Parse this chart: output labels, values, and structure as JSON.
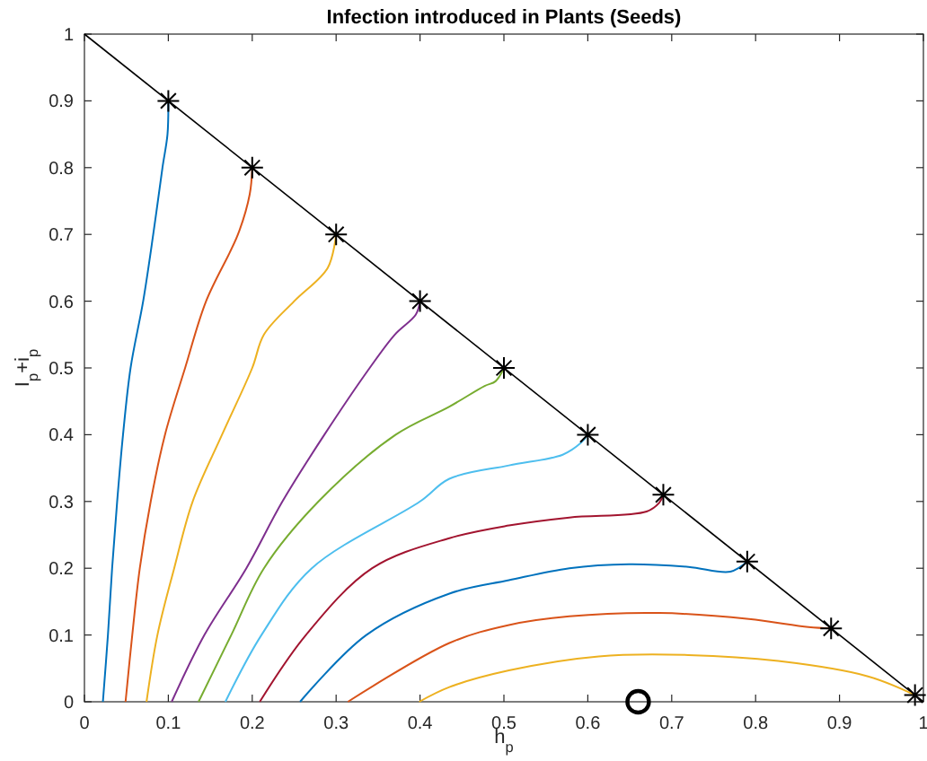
{
  "chart_data": {
    "type": "line",
    "title": "Infection introduced in Plants (Seeds)",
    "xlabel": "h$_{p}$",
    "ylabel": "I$_{p}$+i$_{p}$",
    "xlim": [
      0,
      1
    ],
    "ylim": [
      0,
      1
    ],
    "xticks": [
      0,
      0.1,
      0.2,
      0.3,
      0.4,
      0.5,
      0.6,
      0.7,
      0.8,
      0.9,
      1
    ],
    "yticks": [
      0,
      0.1,
      0.2,
      0.3,
      0.4,
      0.5,
      0.6,
      0.7,
      0.8,
      0.9,
      1
    ],
    "grid": false,
    "series": [
      {
        "color": "#000000",
        "x": [
          0,
          1
        ],
        "values": [
          1,
          0
        ]
      },
      {
        "color": "#0072bd",
        "x": [
          0.1,
          0.099,
          0.093,
          0.082,
          0.07,
          0.055,
          0.046,
          0.039,
          0.033,
          0.028,
          0.022
        ],
        "values": [
          0.9,
          0.85,
          0.8,
          0.7,
          0.6,
          0.5,
          0.4,
          0.3,
          0.2,
          0.1,
          0
        ]
      },
      {
        "color": "#d95319",
        "x": [
          0.2,
          0.197,
          0.183,
          0.145,
          0.12,
          0.096,
          0.079,
          0.066,
          0.057,
          0.049
        ],
        "values": [
          0.8,
          0.76,
          0.7,
          0.6,
          0.5,
          0.4,
          0.3,
          0.2,
          0.1,
          0
        ]
      },
      {
        "color": "#edb120",
        "x": [
          0.3,
          0.29,
          0.25,
          0.214,
          0.2,
          0.164,
          0.129,
          0.107,
          0.087,
          0.074
        ],
        "values": [
          0.7,
          0.65,
          0.6,
          0.55,
          0.5,
          0.4,
          0.3,
          0.2,
          0.1,
          0
        ]
      },
      {
        "color": "#7e2f8e",
        "x": [
          0.4,
          0.395,
          0.37,
          0.34,
          0.286,
          0.236,
          0.193,
          0.143,
          0.104
        ],
        "values": [
          0.6,
          0.58,
          0.55,
          0.5,
          0.4,
          0.3,
          0.2,
          0.1,
          0
        ]
      },
      {
        "color": "#77ac30",
        "x": [
          0.5,
          0.49,
          0.477,
          0.435,
          0.371,
          0.279,
          0.214,
          0.175,
          0.136
        ],
        "values": [
          0.5,
          0.48,
          0.473,
          0.442,
          0.4,
          0.3,
          0.2,
          0.1,
          0
        ]
      },
      {
        "color": "#4dbeee",
        "x": [
          0.6,
          0.592,
          0.57,
          0.506,
          0.435,
          0.4,
          0.271,
          0.211,
          0.168
        ],
        "values": [
          0.4,
          0.388,
          0.37,
          0.354,
          0.334,
          0.3,
          0.2,
          0.1,
          0
        ]
      },
      {
        "color": "#a2142f",
        "x": [
          0.69,
          0.685,
          0.67,
          0.578,
          0.506,
          0.435,
          0.343,
          0.264,
          0.209
        ],
        "values": [
          0.31,
          0.298,
          0.285,
          0.276,
          0.264,
          0.245,
          0.2,
          0.1,
          0
        ]
      },
      {
        "color": "#0072bd",
        "x": [
          0.79,
          0.77,
          0.72,
          0.649,
          0.578,
          0.506,
          0.435,
          0.336,
          0.257
        ],
        "values": [
          0.21,
          0.195,
          0.202,
          0.206,
          0.2,
          0.182,
          0.162,
          0.1,
          0
        ]
      },
      {
        "color": "#d95319",
        "x": [
          0.89,
          0.863,
          0.792,
          0.685,
          0.578,
          0.506,
          0.435,
          0.314
        ],
        "values": [
          0.11,
          0.112,
          0.124,
          0.133,
          0.128,
          0.115,
          0.088,
          0
        ]
      },
      {
        "color": "#edb120",
        "x": [
          0.99,
          0.934,
          0.827,
          0.72,
          0.613,
          0.506,
          0.435,
          0.399
        ],
        "values": [
          0.01,
          0.038,
          0.061,
          0.07,
          0.068,
          0.047,
          0.022,
          0
        ]
      },
      {
        "type": "scatter",
        "marker": "cross",
        "color": "#000000",
        "x": [
          0.1,
          0.2,
          0.3,
          0.4,
          0.5,
          0.6,
          0.69,
          0.79,
          0.89,
          0.99
        ],
        "values": [
          0.9,
          0.8,
          0.7,
          0.6,
          0.5,
          0.4,
          0.31,
          0.21,
          0.11,
          0.01
        ]
      },
      {
        "type": "scatter",
        "marker": "circle",
        "color": "#000000",
        "x": [
          0.66
        ],
        "values": [
          0
        ]
      }
    ]
  }
}
